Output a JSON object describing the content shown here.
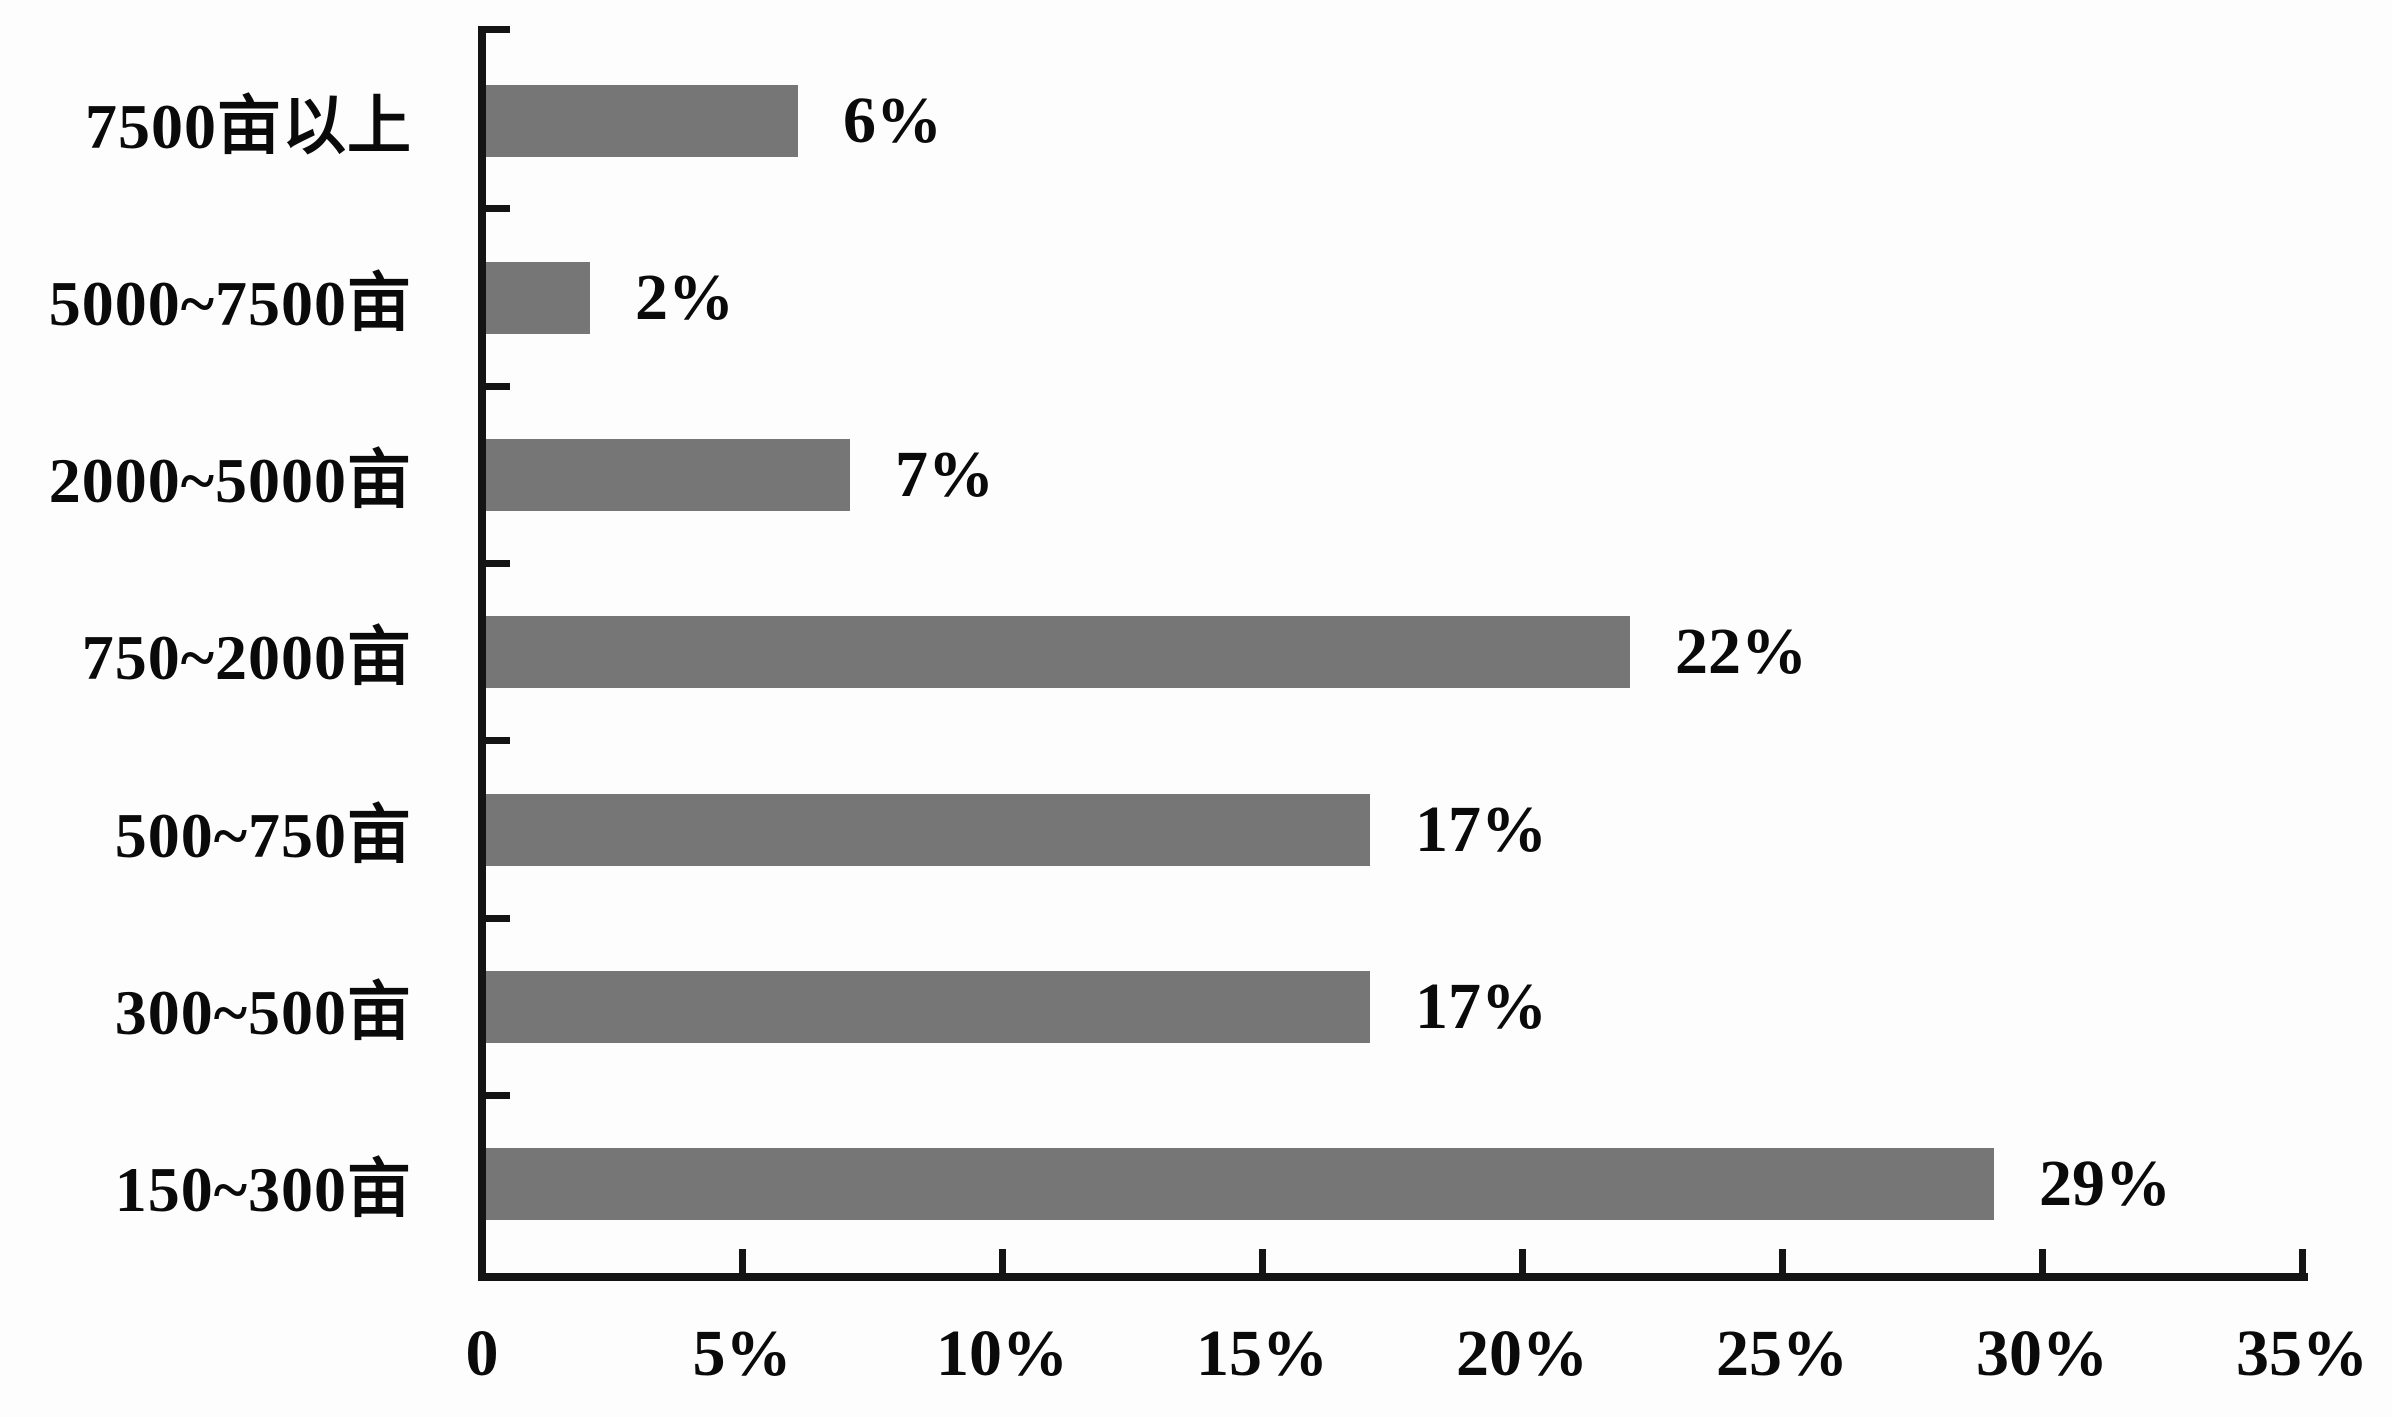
{
  "chart_data": {
    "type": "bar",
    "orientation": "horizontal",
    "title": "",
    "xlabel": "",
    "ylabel": "",
    "categories": [
      "7500亩以上",
      "5000~7500亩",
      "2000~5000亩",
      "750~2000亩",
      "500~750亩",
      "300~500亩",
      "150~300亩"
    ],
    "values": [
      6,
      2,
      7,
      22,
      17,
      17,
      29
    ],
    "value_labels": [
      "6%",
      "2%",
      "7%",
      "22%",
      "17%",
      "17%",
      "29%"
    ],
    "x_axis": {
      "min": 0,
      "max": 35,
      "tick_step": 5,
      "tick_labels": [
        "0",
        "5%",
        "10%",
        "15%",
        "20%",
        "25%",
        "30%",
        "35%"
      ]
    },
    "legend": "none",
    "grid": "off",
    "bar_color": "#767676",
    "axis_color": "#141414",
    "text_color": "#0a0a0a",
    "background_color": "#fdfdfd"
  }
}
